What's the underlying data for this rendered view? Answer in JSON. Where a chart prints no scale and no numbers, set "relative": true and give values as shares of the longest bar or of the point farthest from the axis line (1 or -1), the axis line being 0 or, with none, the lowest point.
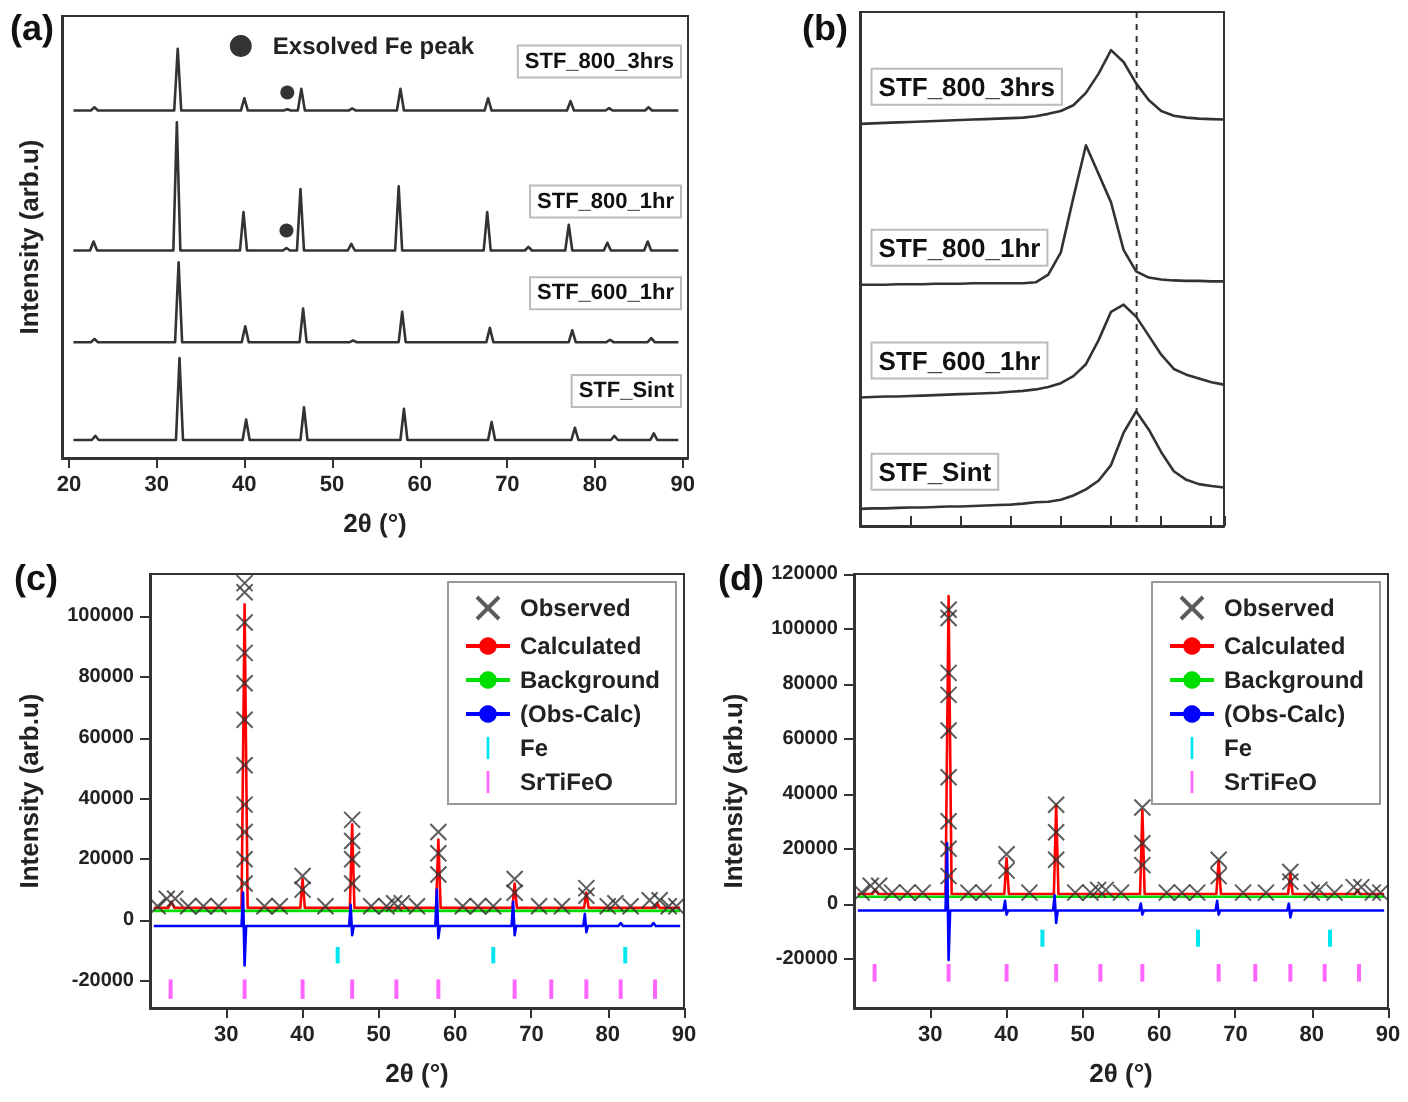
{
  "chart_data": [
    {
      "type": "line",
      "title": "(a)",
      "xlabel": "2θ (°)",
      "ylabel": "Intensity (arb.u)",
      "relative": true,
      "xlim": [
        19.2,
        90.6
      ],
      "xticks": [
        20,
        30,
        40,
        50,
        60,
        70,
        80,
        90
      ],
      "tick_labels": "x",
      "legend": "top",
      "series": [
        {
          "name": "STF_800_3hrs",
          "color": "#333333",
          "x": [
            20.5,
            22.5,
            22.9,
            23.3,
            32.0,
            32.4,
            32.8,
            39.6,
            40.0,
            40.4,
            44.5,
            44.9,
            45.3,
            46.1,
            46.5,
            46.9,
            51.9,
            52.3,
            52.7,
            57.4,
            57.8,
            58.2,
            67.4,
            67.8,
            68.2,
            76.8,
            77.2,
            77.6,
            81.2,
            81.6,
            82.0,
            85.7,
            86.1,
            86.5,
            89.5
          ],
          "values": [
            0.849,
            0.849,
            0.857,
            0.849,
            0.849,
            1,
            0.849,
            0.849,
            0.879,
            0.849,
            0.849,
            0.852,
            0.849,
            0.849,
            0.902,
            0.849,
            0.849,
            0.854,
            0.849,
            0.849,
            0.902,
            0.849,
            0.849,
            0.879,
            0.849,
            0.849,
            0.872,
            0.849,
            0.849,
            0.855,
            0.849,
            0.849,
            0.857,
            0.849,
            0.849
          ]
        },
        {
          "name": "STF_800_1hr",
          "color": "#333333",
          "x": [
            20.5,
            22.4,
            22.8,
            23.2,
            31.9,
            32.3,
            32.7,
            39.5,
            39.9,
            40.3,
            44.4,
            44.8,
            45.2,
            46.0,
            46.4,
            46.8,
            51.8,
            52.2,
            52.6,
            57.2,
            57.6,
            58.0,
            67.3,
            67.7,
            68.1,
            72.0,
            72.4,
            72.8,
            76.6,
            77.0,
            77.4,
            81.0,
            81.4,
            81.8,
            85.6,
            86.0,
            86.4,
            89.5
          ],
          "values": [
            0.507,
            0.507,
            0.529,
            0.507,
            0.507,
            0.82,
            0.507,
            0.507,
            0.601,
            0.507,
            0.507,
            0.513,
            0.507,
            0.507,
            0.657,
            0.507,
            0.507,
            0.523,
            0.507,
            0.507,
            0.664,
            0.507,
            0.507,
            0.601,
            0.507,
            0.507,
            0.516,
            0.507,
            0.507,
            0.57,
            0.507,
            0.507,
            0.526,
            0.507,
            0.507,
            0.529,
            0.507,
            0.507
          ]
        },
        {
          "name": "STF_600_1hr",
          "color": "#333333",
          "x": [
            20.5,
            22.5,
            22.9,
            23.3,
            32.1,
            32.5,
            32.9,
            39.7,
            40.1,
            40.5,
            46.3,
            46.7,
            47.1,
            52.0,
            52.4,
            52.8,
            57.6,
            58.0,
            58.4,
            67.6,
            68.0,
            68.4,
            77.0,
            77.4,
            77.8,
            81.3,
            81.7,
            82.1,
            86.0,
            86.4,
            86.8,
            89.5
          ],
          "values": [
            0.283,
            0.283,
            0.291,
            0.283,
            0.283,
            0.478,
            0.283,
            0.283,
            0.322,
            0.283,
            0.283,
            0.365,
            0.283,
            0.283,
            0.287,
            0.283,
            0.283,
            0.357,
            0.283,
            0.283,
            0.318,
            0.283,
            0.283,
            0.312,
            0.283,
            0.283,
            0.289,
            0.283,
            0.283,
            0.293,
            0.283,
            0.283
          ]
        },
        {
          "name": "STF_Sint",
          "color": "#333333",
          "x": [
            20.5,
            22.6,
            23.0,
            23.4,
            32.2,
            32.6,
            33.0,
            39.8,
            40.2,
            40.6,
            46.4,
            46.8,
            47.2,
            57.8,
            58.2,
            58.6,
            67.8,
            68.2,
            68.6,
            77.3,
            77.7,
            78.1,
            81.8,
            82.2,
            82.6,
            86.3,
            86.7,
            87.1,
            89.5
          ],
          "values": [
            0.044,
            0.044,
            0.054,
            0.044,
            0.044,
            0.244,
            0.044,
            0.044,
            0.094,
            0.044,
            0.044,
            0.124,
            0.044,
            0.044,
            0.12,
            0.044,
            0.044,
            0.088,
            0.044,
            0.044,
            0.074,
            0.044,
            0.044,
            0.054,
            0.044,
            0.044,
            0.06,
            0.044,
            0.044
          ]
        },
        {
          "name": "Exsolved Fe peak",
          "type": "scatter",
          "marker": "circle",
          "color": "#000000",
          "x": [
            44.8,
            44.9
          ],
          "values": [
            0.556,
            0.893
          ]
        }
      ]
    },
    {
      "type": "line",
      "title": "(b)",
      "relative": true,
      "tick_labels": false,
      "categories": [
        null,
        null,
        null,
        null,
        null,
        null,
        null,
        null,
        null,
        null,
        null,
        null,
        null,
        null,
        null,
        null,
        null,
        null,
        null,
        null,
        null,
        null,
        null,
        null,
        null,
        null,
        null,
        null,
        null,
        null
      ],
      "series": [
        {
          "name": "STF_800_3hrs",
          "color": "#333333",
          "values": [
            0.845,
            0.846,
            0.847,
            0.848,
            0.849,
            0.85,
            0.851,
            0.852,
            0.853,
            0.854,
            0.855,
            0.856,
            0.857,
            0.858,
            0.861,
            0.866,
            0.872,
            0.884,
            0.91,
            0.95,
            1,
            0.975,
            0.93,
            0.895,
            0.872,
            0.862,
            0.858,
            0.856,
            0.855,
            0.854
          ]
        },
        {
          "name": "STF_800_1hr",
          "color": "#333333",
          "values": [
            0.507,
            0.507,
            0.507,
            0.508,
            0.508,
            0.508,
            0.509,
            0.509,
            0.509,
            0.51,
            0.51,
            0.51,
            0.51,
            0.51,
            0.512,
            0.528,
            0.575,
            0.69,
            0.8,
            0.74,
            0.68,
            0.58,
            0.535,
            0.522,
            0.518,
            0.516,
            0.515,
            0.515,
            0.514,
            0.514
          ]
        },
        {
          "name": "STF_600_1hr",
          "color": "#333333",
          "values": [
            0.27,
            0.271,
            0.272,
            0.272,
            0.273,
            0.274,
            0.275,
            0.276,
            0.277,
            0.278,
            0.279,
            0.28,
            0.282,
            0.284,
            0.287,
            0.292,
            0.3,
            0.315,
            0.34,
            0.39,
            0.45,
            0.465,
            0.44,
            0.4,
            0.36,
            0.33,
            0.318,
            0.31,
            0.302,
            0.297
          ]
        },
        {
          "name": "STF_Sint",
          "color": "#333333",
          "values": [
            0.036,
            0.037,
            0.037,
            0.038,
            0.039,
            0.039,
            0.04,
            0.041,
            0.041,
            0.042,
            0.043,
            0.044,
            0.045,
            0.047,
            0.05,
            0.051,
            0.055,
            0.064,
            0.077,
            0.095,
            0.128,
            0.196,
            0.241,
            0.203,
            0.155,
            0.115,
            0.097,
            0.088,
            0.084,
            0.081
          ]
        }
      ]
    },
    {
      "type": "line",
      "title": "(c)",
      "xlabel": "2θ (°)",
      "ylabel": "Intensity (arb.u)",
      "xlim": [
        20,
        90
      ],
      "xticks": [
        30,
        40,
        50,
        60,
        70,
        80,
        90
      ],
      "ylim": [
        -29000,
        114000
      ],
      "yticks": [
        -20000,
        0,
        20000,
        40000,
        60000,
        80000,
        100000
      ],
      "legend": "top right",
      "series": [
        {
          "name": "Observed",
          "type": "scatter",
          "marker": "cross",
          "color": "#333333",
          "x": [
            21,
            22.2,
            23.3,
            25,
            27,
            29,
            32.4,
            32.4,
            32.4,
            32.4,
            32.4,
            32.4,
            32.4,
            32.4,
            32.4,
            32.4,
            32.4,
            35,
            37,
            40,
            40,
            43,
            46.5,
            46.5,
            46.5,
            46.5,
            49,
            51,
            52,
            53,
            55,
            57.8,
            57.8,
            57.8,
            61,
            63,
            65,
            67.8,
            67.8,
            71,
            74,
            77.2,
            77.2,
            80,
            81,
            83,
            85.5,
            86.8,
            88,
            89
          ],
          "values": [
            4500,
            7000,
            7000,
            4500,
            4500,
            4500,
            111000,
            108000,
            98000,
            88000,
            78000,
            66000,
            51000,
            38000,
            29000,
            20000,
            12000,
            4500,
            4500,
            14500,
            10000,
            4500,
            33000,
            26000,
            20000,
            12000,
            4500,
            4500,
            5500,
            5500,
            4500,
            29000,
            22000,
            15000,
            4500,
            4500,
            4500,
            13500,
            9000,
            4500,
            4500,
            10500,
            8000,
            4500,
            5500,
            4500,
            6500,
            6500,
            4500,
            4500
          ]
        },
        {
          "name": "Calculated",
          "color": "#ff0000",
          "x": [
            20.5,
            22.4,
            22.8,
            23.2,
            32.0,
            32.4,
            32.8,
            39.7,
            40,
            40.3,
            46.2,
            46.5,
            46.8,
            57.5,
            57.8,
            58.1,
            67.5,
            67.8,
            68.1,
            76.9,
            77.2,
            77.5,
            86.2,
            86.5,
            86.8,
            89.5
          ],
          "values": [
            4000,
            4000,
            6000,
            4000,
            4000,
            104000,
            4000,
            4000,
            13500,
            4000,
            4000,
            31500,
            4000,
            4000,
            26500,
            4000,
            4000,
            12000,
            4000,
            4000,
            9000,
            4000,
            4000,
            5500,
            4000,
            4000
          ]
        },
        {
          "name": "Background",
          "color": "#00dd00",
          "x": [
            20.5,
            89.5
          ],
          "values": [
            3000,
            3000
          ]
        },
        {
          "name": "(Obs-Calc)",
          "color": "#0000ff",
          "x": [
            20.5,
            32.0,
            32.2,
            32.4,
            32.6,
            46.1,
            46.3,
            46.5,
            46.7,
            57.4,
            57.6,
            57.8,
            58.0,
            67.4,
            67.6,
            67.8,
            68.0,
            76.8,
            77.0,
            77.2,
            77.4,
            81.4,
            81.7,
            82.0,
            85.7,
            86.0,
            86.3,
            89.5
          ],
          "values": [
            -2000,
            -2000,
            9000,
            -15000,
            -2000,
            -2000,
            5000,
            -5000,
            -2000,
            -2000,
            10000,
            -6000,
            -2000,
            -2000,
            6000,
            -5000,
            -2000,
            -2000,
            2000,
            -4000,
            -2000,
            -2000,
            -1000,
            -2000,
            -2000,
            -1000,
            -2000,
            -2000
          ]
        },
        {
          "name": "Fe",
          "type": "bar",
          "color": "#00e5ee",
          "x": [
            44.6,
            65.0,
            82.3
          ],
          "base": [
            -14300,
            -14300,
            -14300
          ],
          "values": [
            5400,
            5400,
            5400
          ]
        },
        {
          "name": "SrTiFeO",
          "type": "bar",
          "color": "#ff66ff",
          "x": [
            22.7,
            32.4,
            40.0,
            46.5,
            52.3,
            57.8,
            67.8,
            72.6,
            77.2,
            81.7,
            86.2
          ],
          "base": [
            -26000,
            -26000,
            -26000,
            -26000,
            -26000,
            -26000,
            -26000,
            -26000,
            -26000,
            -26000,
            -26000
          ],
          "values": [
            6400,
            6400,
            6400,
            6400,
            6400,
            6400,
            6400,
            6400,
            6400,
            6400,
            6400
          ]
        }
      ]
    },
    {
      "type": "line",
      "title": "(d)",
      "xlabel": "2θ (°)",
      "ylabel": "Intensity (arb.u)",
      "xlim": [
        20,
        90
      ],
      "xticks": [
        30,
        40,
        50,
        60,
        70,
        80,
        90
      ],
      "ylim": [
        -38000,
        120000
      ],
      "yticks": [
        -20000,
        0,
        20000,
        40000,
        60000,
        80000,
        100000,
        120000
      ],
      "legend": "top right",
      "series": [
        {
          "name": "Observed",
          "type": "scatter",
          "marker": "cross",
          "color": "#333333",
          "x": [
            21,
            22.2,
            23.3,
            25,
            27,
            29,
            32.4,
            32.4,
            32.4,
            32.4,
            32.4,
            32.4,
            32.4,
            32.4,
            32.4,
            35,
            37,
            40,
            40,
            43,
            46.5,
            46.5,
            46.5,
            49,
            51,
            52,
            53,
            55,
            57.8,
            57.8,
            57.8,
            61,
            63,
            65,
            67.8,
            67.8,
            71,
            74,
            77.2,
            77.2,
            80,
            81,
            83,
            85.5,
            86.5,
            88,
            89
          ],
          "values": [
            4000,
            6500,
            6500,
            4000,
            4000,
            4000,
            107000,
            104000,
            84000,
            76000,
            63000,
            46000,
            30000,
            20000,
            10000,
            4000,
            4000,
            18000,
            12000,
            4000,
            36000,
            26000,
            16000,
            4000,
            4000,
            5000,
            5000,
            4000,
            35000,
            22000,
            14000,
            4000,
            4000,
            4000,
            16000,
            10000,
            4000,
            4000,
            11500,
            8000,
            4000,
            5000,
            4000,
            6000,
            6000,
            4000,
            4000
          ]
        },
        {
          "name": "Calculated",
          "color": "#ff0000",
          "x": [
            20.5,
            22.4,
            22.8,
            23.2,
            32.0,
            32.4,
            32.8,
            39.7,
            40,
            40.3,
            46.2,
            46.5,
            46.8,
            57.5,
            57.8,
            58.1,
            67.5,
            67.8,
            68.1,
            76.9,
            77.2,
            77.5,
            85.7,
            86.0,
            86.3,
            89.5
          ],
          "values": [
            3500,
            3500,
            5000,
            3500,
            3500,
            112000,
            3500,
            3500,
            16500,
            3500,
            3500,
            36000,
            3500,
            3500,
            34000,
            3500,
            3500,
            15500,
            3500,
            3500,
            11000,
            3500,
            3500,
            5000,
            3500,
            3500
          ]
        },
        {
          "name": "Background",
          "color": "#00dd00",
          "x": [
            20.5,
            89.5
          ],
          "values": [
            2500,
            2500
          ]
        },
        {
          "name": "(Obs-Calc)",
          "color": "#0000ff",
          "x": [
            20.5,
            32.0,
            32.2,
            32.4,
            32.6,
            39.6,
            39.8,
            40,
            40.2,
            46.1,
            46.3,
            46.5,
            46.7,
            57.4,
            57.6,
            57.8,
            58.0,
            67.4,
            67.6,
            67.8,
            68.0,
            76.8,
            77.0,
            77.2,
            77.4,
            89.5
          ],
          "values": [
            -2500,
            -2500,
            22000,
            -20500,
            -2500,
            -2500,
            1000,
            -4000,
            -2500,
            -2500,
            3000,
            -7000,
            -2500,
            -2500,
            0,
            -4000,
            -2500,
            -2500,
            1000,
            -4000,
            -2500,
            -2500,
            0,
            -5000,
            -2500,
            -2500
          ]
        },
        {
          "name": "Fe",
          "type": "bar",
          "color": "#00e5ee",
          "x": [
            44.7,
            65.1,
            82.4
          ],
          "base": [
            -15700,
            -15700,
            -15700
          ],
          "values": [
            6200,
            6200,
            6200
          ]
        },
        {
          "name": "SrTiFeO",
          "type": "bar",
          "color": "#ff66ff",
          "x": [
            22.7,
            32.4,
            40.0,
            46.5,
            52.3,
            57.8,
            67.8,
            72.6,
            77.2,
            81.7,
            86.2
          ],
          "base": [
            -28400,
            -28400,
            -28400,
            -28400,
            -28400,
            -28400,
            -28400,
            -28400,
            -28400,
            -28400,
            -28400
          ],
          "values": [
            6400,
            6400,
            6400,
            6400,
            6400,
            6400,
            6400,
            6400,
            6400,
            6400,
            6400
          ]
        }
      ]
    }
  ]
}
